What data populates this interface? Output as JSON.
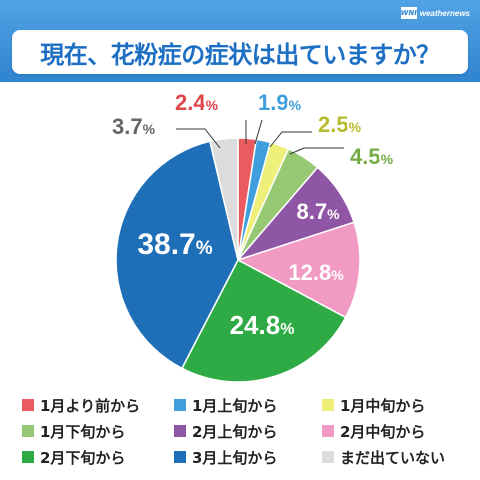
{
  "header": {
    "brand": "weathernews",
    "brand_logo": "WNI",
    "title": "現在、花粉症の症状は出ていますか？"
  },
  "chart_data": {
    "type": "pie",
    "title": "",
    "unit": "%",
    "start_angle_deg": 0,
    "direction": "clockwise",
    "legend_position": "bottom",
    "slices": [
      {
        "label": "1月より前から",
        "value": 2.4,
        "color": "#ea5a5e"
      },
      {
        "label": "1月上旬から",
        "value": 1.9,
        "color": "#3f9fdc"
      },
      {
        "label": "1月中旬から",
        "value": 2.5,
        "color": "#eef07a"
      },
      {
        "label": "1月下旬から",
        "value": 4.5,
        "color": "#97c873"
      },
      {
        "label": "2月上旬から",
        "value": 8.7,
        "color": "#8f56a6"
      },
      {
        "label": "2月中旬から",
        "value": 12.8,
        "color": "#f19bc4"
      },
      {
        "label": "2月下旬から",
        "value": 24.8,
        "color": "#2eab45"
      },
      {
        "label": "3月上旬から",
        "value": 38.7,
        "color": "#1f6fb8"
      },
      {
        "label": "まだ出ていない",
        "value": 3.7,
        "color": "#dcdcdc"
      }
    ],
    "value_labels": [
      "2.4",
      "1.9",
      "2.5",
      "4.5",
      "8.7",
      "12.8",
      "24.8",
      "38.7",
      "3.7"
    ],
    "value_label_colors": [
      "#e0454a",
      "#3f9fdc",
      "#b7ba2a",
      "#74ad48",
      "#ffffff",
      "#ffffff",
      "#ffffff",
      "#ffffff",
      "#666666"
    ]
  }
}
